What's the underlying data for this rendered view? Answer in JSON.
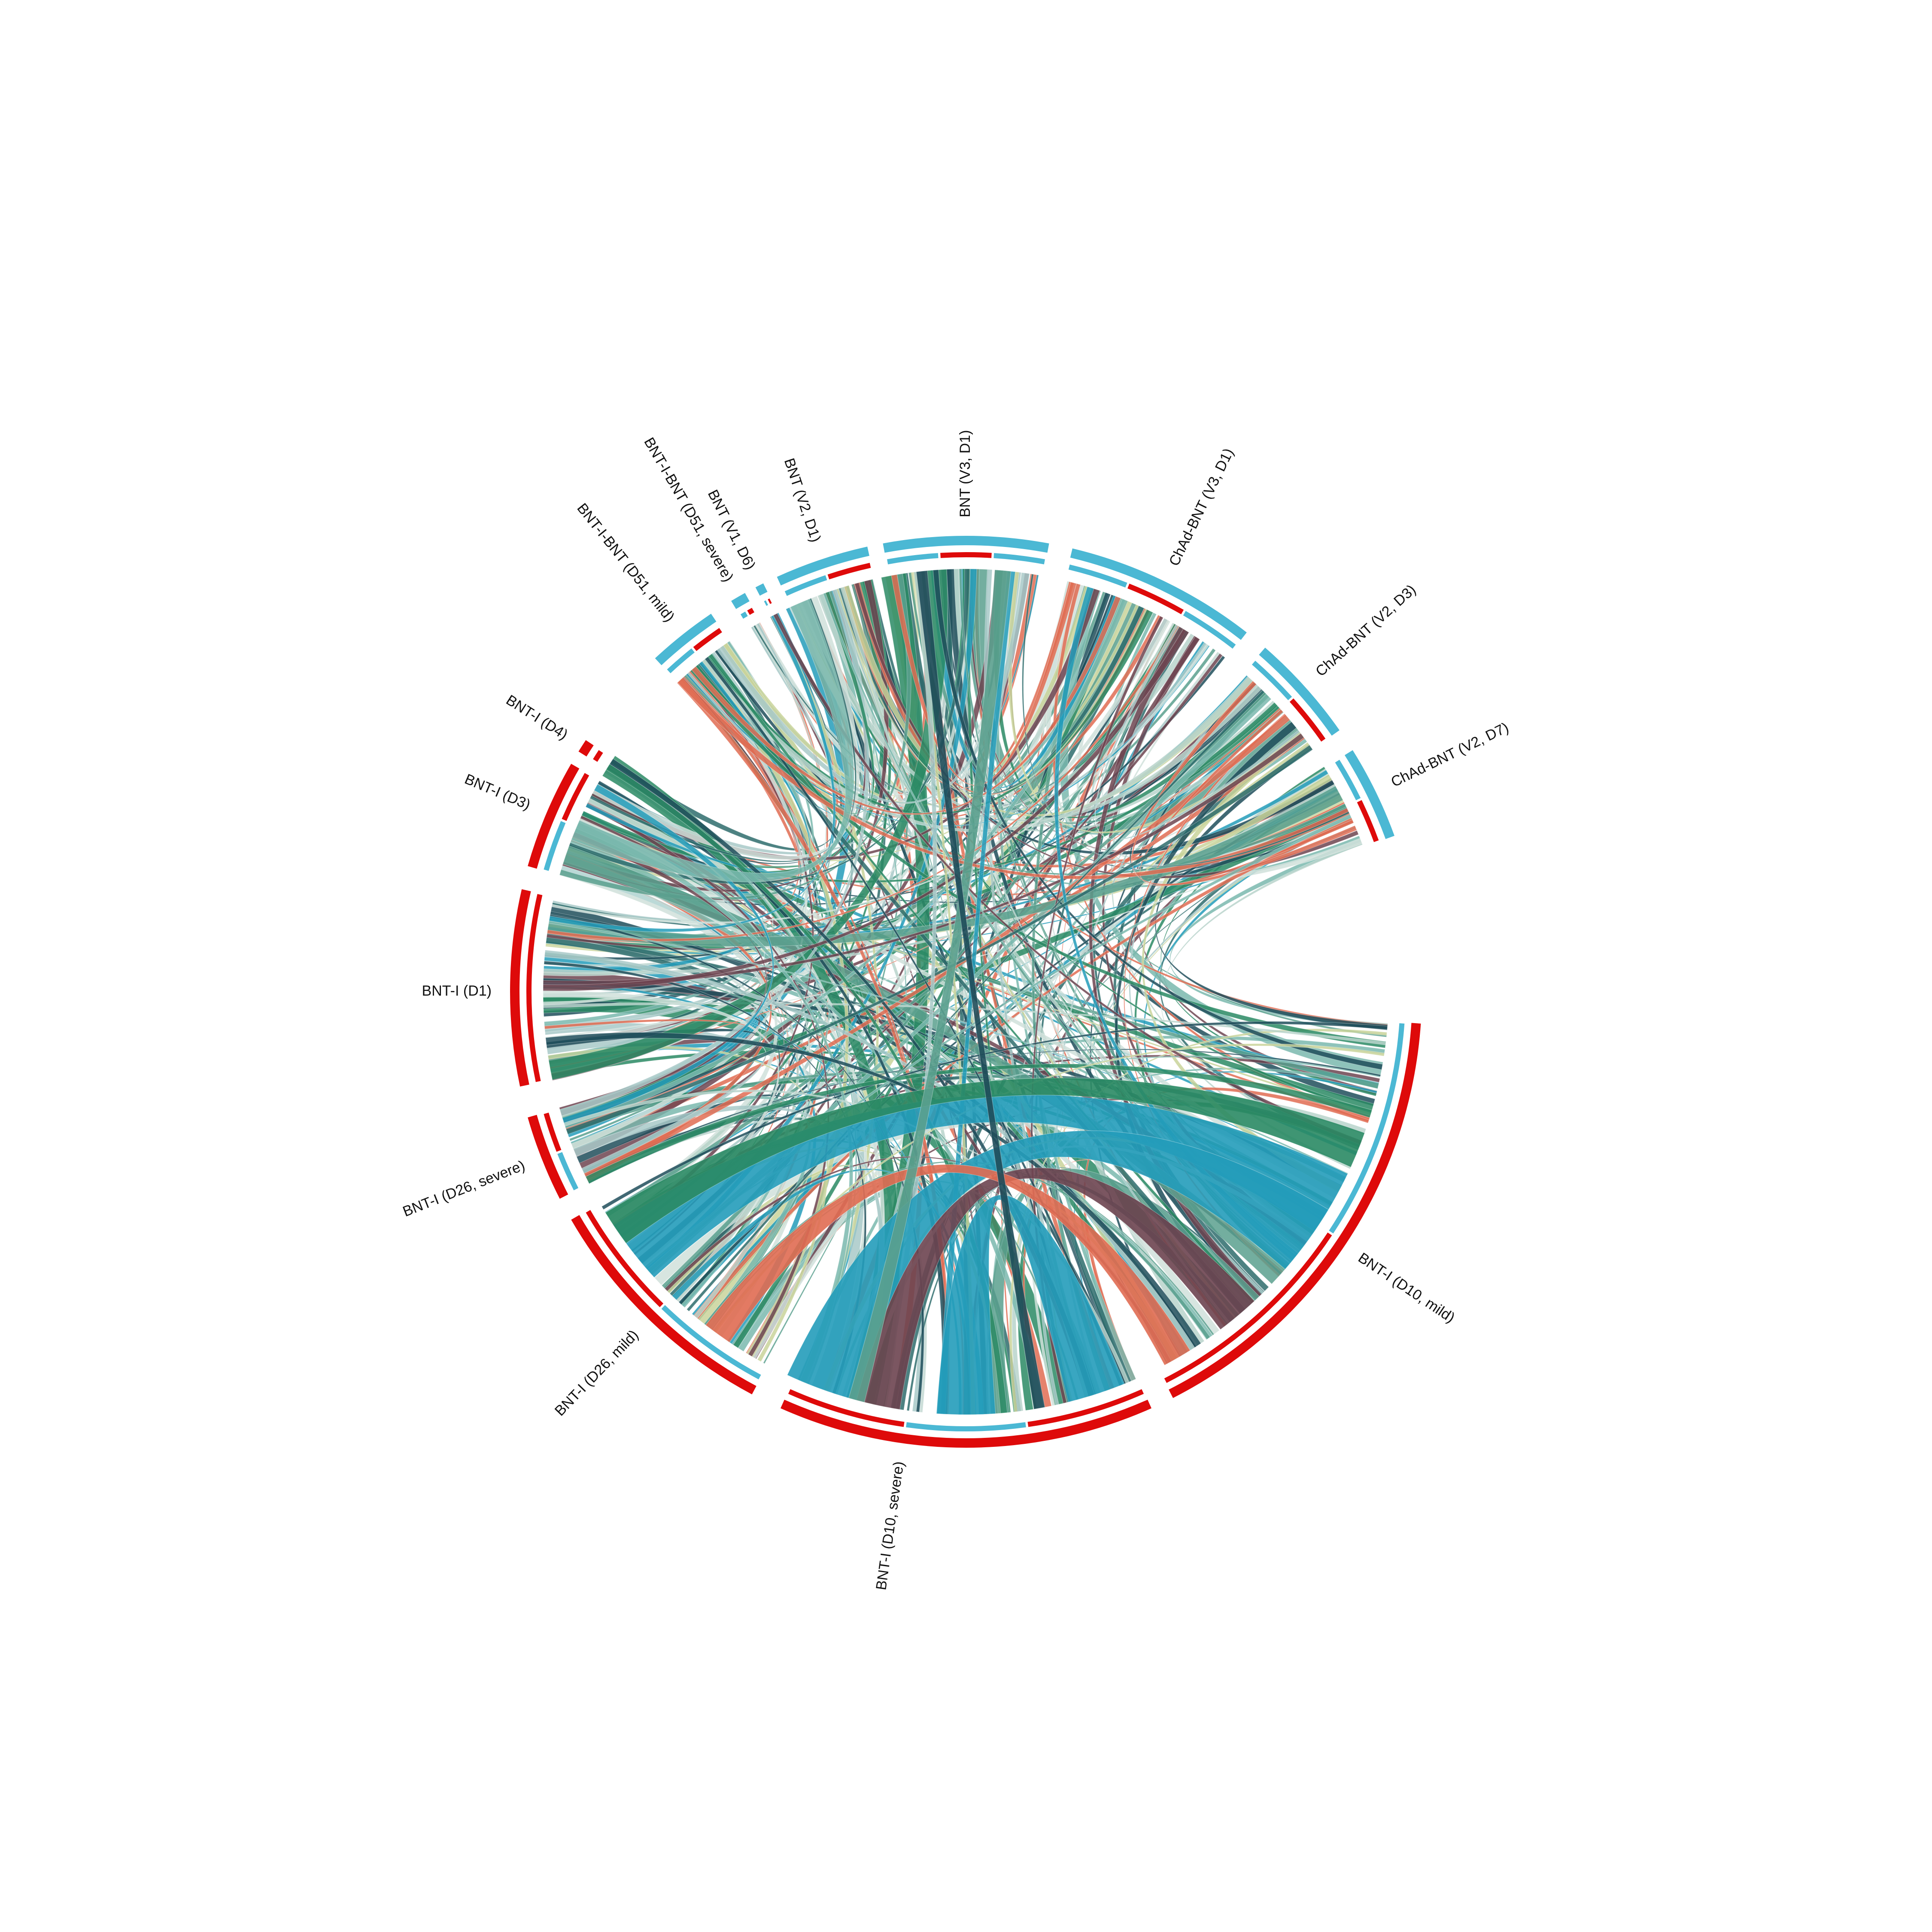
{
  "colors": {
    "outer_blue": "#4BB8D4",
    "outer_red": "#DE0A0A",
    "ribbon_palette": [
      "#1F4D5A",
      "#2A8A64",
      "#239CBA",
      "#7AB8AE",
      "#B8D3CB",
      "#E06C52",
      "#6D4450",
      "#C9D39A",
      "#A8C9C8",
      "#2E6C6C",
      "#5BA08E",
      "#D0E0DA"
    ]
  },
  "segments": [
    {
      "label": "BNT (V3, D1)",
      "group": "blue",
      "subtrack": [
        "blue",
        "red",
        "blue"
      ]
    },
    {
      "label": "ChAd-BNT (V3, D1)",
      "group": "blue",
      "subtrack": [
        "blue",
        "red",
        "blue"
      ]
    },
    {
      "label": "ChAd-BNT (V2, D3)",
      "group": "blue",
      "subtrack": [
        "blue",
        "red"
      ]
    },
    {
      "label": "ChAd-BNT (V2, D7)",
      "group": "blue",
      "subtrack": [
        "blue",
        "red"
      ]
    },
    {
      "label": "BNT-I (D10, mild)",
      "group": "red",
      "subtrack": [
        "blue",
        "red"
      ]
    },
    {
      "label": "BNT-I (D10, severe)",
      "group": "red",
      "subtrack": [
        "red",
        "blue",
        "red"
      ]
    },
    {
      "label": "BNT-I (D26, mild)",
      "group": "red",
      "subtrack": [
        "blue",
        "red"
      ]
    },
    {
      "label": "BNT-I (D26, severe)",
      "group": "red",
      "subtrack": [
        "blue",
        "red"
      ]
    },
    {
      "label": "BNT-I (D1)",
      "group": "red",
      "subtrack": [
        "red"
      ]
    },
    {
      "label": "BNT-I (D3)",
      "group": "red",
      "subtrack": [
        "blue",
        "red"
      ]
    },
    {
      "label": "BNT-I (D4)",
      "group": "red",
      "subtrack": [
        "red"
      ]
    },
    {
      "label": "BNT-I-BNT (D51, mild)",
      "group": "blue",
      "subtrack": [
        "blue",
        "red"
      ]
    },
    {
      "label": "BNT-I-BNT (D51, severe)",
      "group": "blue",
      "subtrack": [
        "blue",
        "red"
      ]
    },
    {
      "label": "BNT (V1, D6)",
      "group": "blue",
      "subtrack": [
        "blue",
        "red"
      ]
    },
    {
      "label": "BNT (V2, D1)",
      "group": "blue",
      "subtrack": [
        "blue",
        "red"
      ]
    }
  ]
}
